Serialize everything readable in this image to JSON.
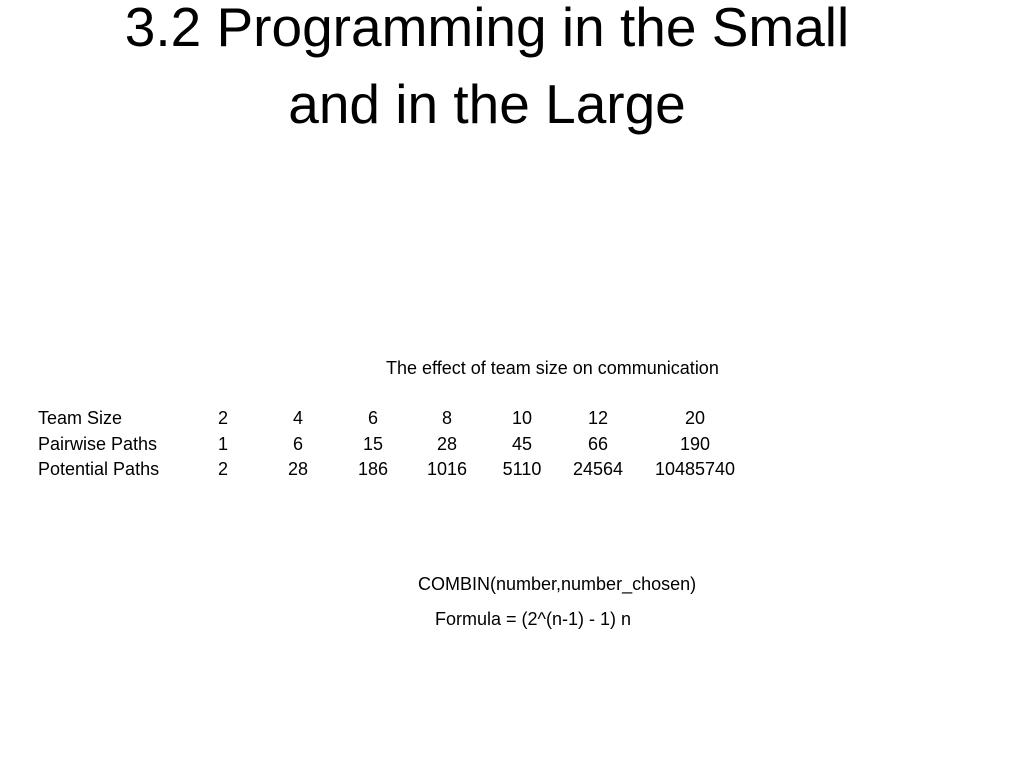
{
  "title": [
    "3.2 Programming in the Small",
    "and in the Large"
  ],
  "caption": "The effect of team size on communication",
  "table": {
    "rows": [
      {
        "label": "Team Size",
        "values": [
          2,
          4,
          6,
          8,
          10,
          12,
          20
        ]
      },
      {
        "label": "Pairwise Paths",
        "values": [
          1,
          6,
          15,
          28,
          45,
          66,
          190
        ]
      },
      {
        "label": "Potential Paths",
        "values": [
          2,
          28,
          186,
          1016,
          5110,
          24564,
          10485740
        ]
      }
    ]
  },
  "notes": [
    "COMBIN(number,number_chosen)",
    "Formula = (2^(n-1) - 1) n"
  ]
}
